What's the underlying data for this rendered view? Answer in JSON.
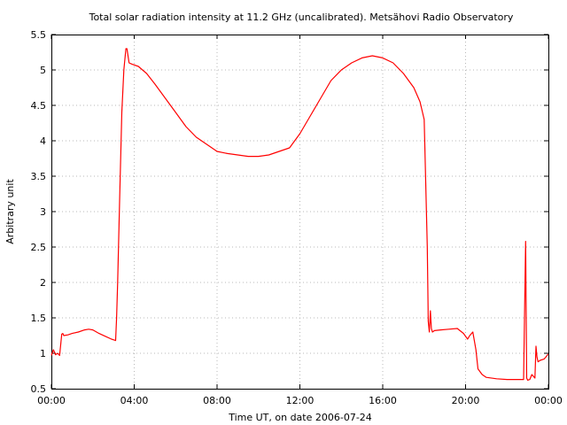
{
  "chart_data": {
    "type": "line",
    "title": "Total solar radiation intensity at 11.2 GHz (uncalibrated). Metsähovi Radio Observatory",
    "xlabel": "Time UT, on date 2006-07-24",
    "ylabel": "Arbitrary unit",
    "xlim": [
      0,
      24
    ],
    "ylim": [
      0.5,
      5.5
    ],
    "x_ticks": [
      0,
      4,
      8,
      12,
      16,
      20,
      24
    ],
    "x_tick_labels": [
      "00:00",
      "04:00",
      "08:00",
      "12:00",
      "16:00",
      "20:00",
      "00:00"
    ],
    "y_ticks": [
      0.5,
      1,
      1.5,
      2,
      2.5,
      3,
      3.5,
      4,
      4.5,
      5,
      5.5
    ],
    "y_tick_labels": [
      "0.5",
      "1",
      "1.5",
      "2",
      "2.5",
      "3",
      "3.5",
      "4",
      "4.5",
      "5",
      "5.5"
    ],
    "grid": true,
    "grid_style": "dotted",
    "line_color": "#ff0000",
    "series": [
      {
        "x": [
          0.0,
          0.1,
          0.2,
          0.3,
          0.4,
          0.5,
          0.55,
          0.6,
          0.8,
          1.0,
          1.3,
          1.6,
          1.8,
          2.0,
          2.3,
          2.6,
          2.9,
          3.1,
          3.15,
          3.2,
          3.3,
          3.4,
          3.5,
          3.6,
          3.65,
          3.75,
          3.9,
          4.2,
          4.6,
          5.0,
          5.5,
          6.0,
          6.5,
          7.0,
          7.5,
          8.0,
          8.5,
          9.0,
          9.5,
          10.0,
          10.5,
          11.0,
          11.5,
          12.0,
          12.5,
          13.0,
          13.5,
          14.0,
          14.5,
          15.0,
          15.5,
          16.0,
          16.5,
          17.0,
          17.5,
          17.8,
          18.0,
          18.15,
          18.2,
          18.25,
          18.3,
          18.35,
          18.4,
          18.5,
          18.8,
          19.2,
          19.6,
          19.9,
          20.1,
          20.2,
          20.35,
          20.5,
          20.6,
          20.8,
          21.0,
          21.5,
          22.0,
          22.5,
          22.8,
          22.9,
          22.95,
          23.0,
          23.1,
          23.2,
          23.35,
          23.4,
          23.45,
          23.5,
          23.6,
          23.8,
          24.0
        ],
        "y": [
          0.97,
          1.05,
          0.98,
          1.0,
          0.97,
          1.27,
          1.28,
          1.25,
          1.26,
          1.28,
          1.3,
          1.33,
          1.34,
          1.33,
          1.28,
          1.24,
          1.2,
          1.18,
          1.5,
          2.0,
          3.2,
          4.4,
          5.0,
          5.3,
          5.3,
          5.1,
          5.08,
          5.05,
          4.95,
          4.8,
          4.6,
          4.4,
          4.2,
          4.05,
          3.95,
          3.85,
          3.82,
          3.8,
          3.78,
          3.78,
          3.8,
          3.85,
          3.9,
          4.1,
          4.35,
          4.6,
          4.85,
          5.0,
          5.1,
          5.17,
          5.2,
          5.17,
          5.1,
          4.95,
          4.75,
          4.55,
          4.3,
          2.5,
          1.45,
          1.3,
          1.6,
          1.35,
          1.3,
          1.32,
          1.33,
          1.34,
          1.35,
          1.28,
          1.2,
          1.25,
          1.3,
          1.05,
          0.78,
          0.7,
          0.66,
          0.64,
          0.63,
          0.63,
          0.63,
          2.58,
          0.65,
          0.62,
          0.63,
          0.7,
          0.65,
          1.1,
          0.95,
          0.88,
          0.9,
          0.92,
          0.99
        ]
      }
    ]
  }
}
